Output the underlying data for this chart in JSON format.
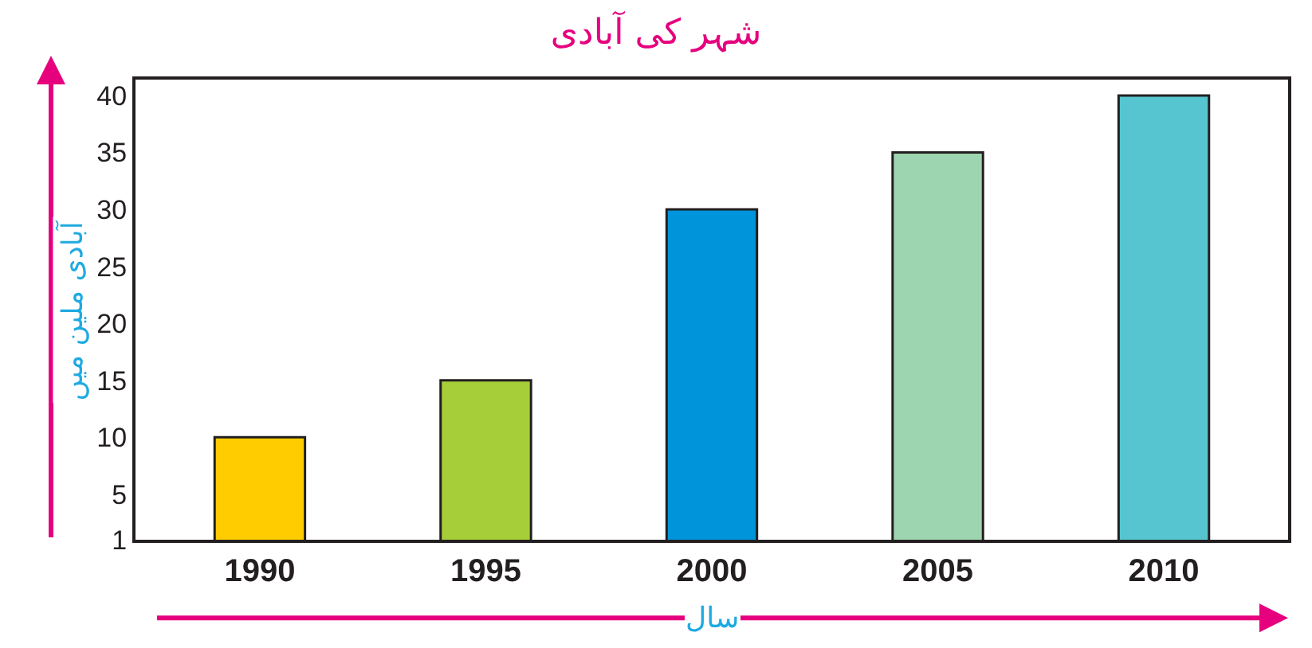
{
  "chart_data": {
    "type": "bar",
    "title": "شہر کی آبادی",
    "xlabel": "سال",
    "ylabel": "آبادی ملین میں",
    "categories": [
      "1990",
      "1995",
      "2000",
      "2005",
      "2010"
    ],
    "values": [
      10,
      15,
      30,
      35,
      40
    ],
    "colors": [
      "#ffcc00",
      "#a6ce39",
      "#0095da",
      "#9dd5b0",
      "#56c5d0"
    ],
    "ylim": [
      1,
      41.4
    ],
    "yticks": [
      1,
      5,
      10,
      15,
      20,
      25,
      30,
      35,
      40
    ]
  }
}
